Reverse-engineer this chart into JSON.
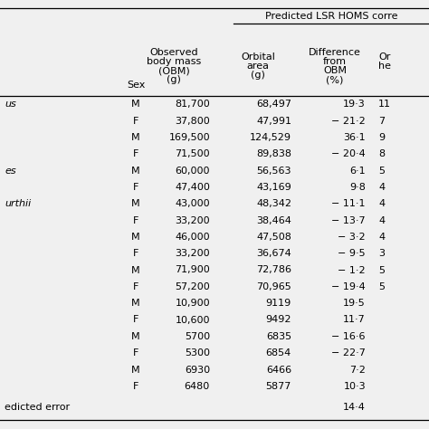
{
  "title": "Predicted LSR HOMS corre",
  "col_headers_line1": [
    "",
    "",
    "Observed",
    "Orbital",
    "Difference",
    "Or"
  ],
  "col_headers_line2": [
    "",
    "",
    "body mass",
    "area",
    "from",
    "he"
  ],
  "col_headers_line3": [
    "",
    "",
    "(OBM)",
    "(g)",
    "OBM",
    ""
  ],
  "col_headers_line4": [
    "",
    "Sex",
    "(g)",
    "",
    "(%)",
    ""
  ],
  "rows": [
    [
      "us",
      "M",
      "81,700",
      "68,497",
      "19·3",
      "11"
    ],
    [
      "",
      "F",
      "37,800",
      "47,991",
      "− 21·2",
      "7"
    ],
    [
      "",
      "M",
      "169,500",
      "124,529",
      "36·1",
      "9"
    ],
    [
      "",
      "F",
      "71,500",
      "89,838",
      "− 20·4",
      "8"
    ],
    [
      "es",
      "M",
      "60,000",
      "56,563",
      "6·1",
      "5"
    ],
    [
      "",
      "F",
      "47,400",
      "43,169",
      "9·8",
      "4"
    ],
    [
      "urthii",
      "M",
      "43,000",
      "48,342",
      "− 11·1",
      "4"
    ],
    [
      "",
      "F",
      "33,200",
      "38,464",
      "− 13·7",
      "4"
    ],
    [
      "",
      "M",
      "46,000",
      "47,508",
      "− 3·2",
      "4"
    ],
    [
      "",
      "F",
      "33,200",
      "36,674",
      "− 9·5",
      "3"
    ],
    [
      "",
      "M",
      "71,900",
      "72,786",
      "− 1·2",
      "5"
    ],
    [
      "",
      "F",
      "57,200",
      "70,965",
      "− 19·4",
      "5"
    ],
    [
      "",
      "M",
      "10,900",
      "9119",
      "19·5",
      ""
    ],
    [
      "",
      "F",
      "10,600",
      "9492",
      "11·7",
      ""
    ],
    [
      "",
      "M",
      "5700",
      "6835",
      "− 16·6",
      ""
    ],
    [
      "",
      "F",
      "5300",
      "6854",
      "− 22·7",
      ""
    ],
    [
      "",
      "M",
      "6930",
      "6466",
      "7·2",
      ""
    ],
    [
      "",
      "F",
      "6480",
      "5877",
      "10·3",
      ""
    ]
  ],
  "footer_label": "edicted error",
  "footer_value": "14·4",
  "bg_color": "#f0f0f0",
  "text_color": "#000000",
  "figsize": [
    4.74,
    4.74
  ],
  "dpi": 100
}
